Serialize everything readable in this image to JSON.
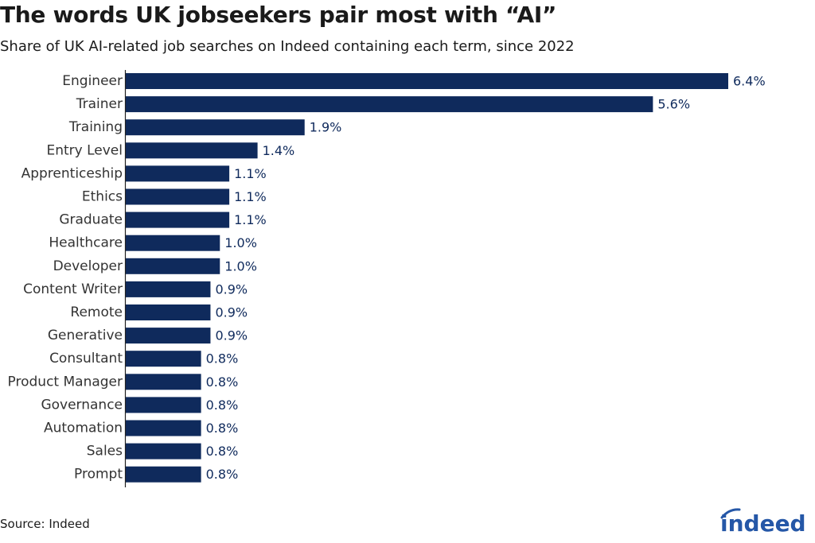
{
  "title": "The words UK jobseekers pair most with “AI”",
  "subtitle": "Share of UK AI-related job searches on Indeed containing each term, since 2022",
  "source": "Source: Indeed",
  "logo_text": "indeed",
  "colors": {
    "bar": "#0f2a5c",
    "value_label": "#0f2a5c",
    "axis": "#222222",
    "logo": "#2557a7"
  },
  "chart_data": {
    "type": "bar",
    "orientation": "horizontal",
    "categories": [
      "Engineer",
      "Trainer",
      "Training",
      "Entry Level",
      "Apprenticeship",
      "Ethics",
      "Graduate",
      "Healthcare",
      "Developer",
      "Content Writer",
      "Remote",
      "Generative",
      "Consultant",
      "Product Manager",
      "Governance",
      "Automation",
      "Sales",
      "Prompt"
    ],
    "values": [
      6.4,
      5.6,
      1.9,
      1.4,
      1.1,
      1.1,
      1.1,
      1.0,
      1.0,
      0.9,
      0.9,
      0.9,
      0.8,
      0.8,
      0.8,
      0.8,
      0.8,
      0.8
    ],
    "value_labels": [
      "6.4%",
      "5.6%",
      "1.9%",
      "1.4%",
      "1.1%",
      "1.1%",
      "1.1%",
      "1.0%",
      "1.0%",
      "0.9%",
      "0.9%",
      "0.9%",
      "0.8%",
      "0.8%",
      "0.8%",
      "0.8%",
      "0.8%",
      "0.8%"
    ],
    "unit": "%",
    "xlim": [
      0,
      6.4
    ],
    "grid": false,
    "legend": "none"
  }
}
